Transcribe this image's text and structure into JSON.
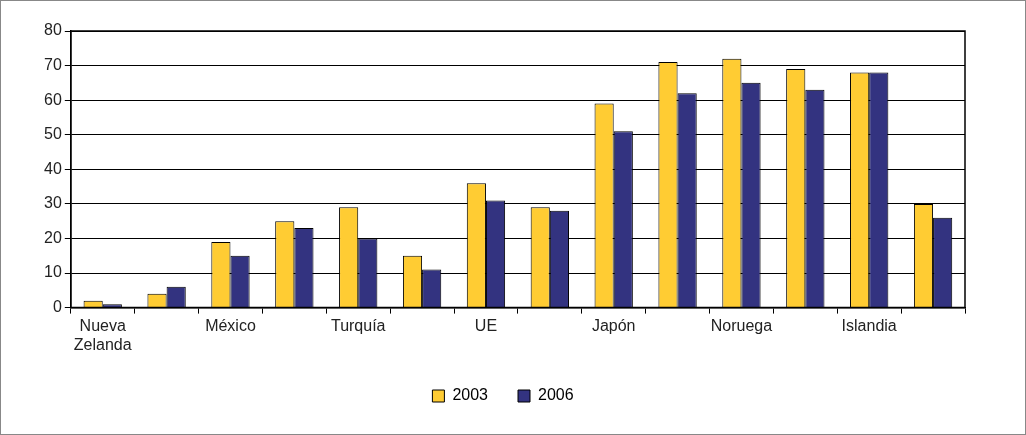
{
  "chart_data": {
    "type": "bar",
    "categories": [
      "Nueva Zelanda",
      null,
      "México",
      null,
      "Turquía",
      null,
      "UE",
      null,
      "Japón",
      null,
      "Noruega",
      null,
      "Islandia",
      null
    ],
    "series": [
      {
        "name": "2003",
        "color": "#ffcc33",
        "values": [
          2,
          4,
          19,
          25,
          29,
          15,
          36,
          29,
          59,
          71,
          72,
          69,
          68,
          30
        ]
      },
      {
        "name": "2006",
        "color": "#333380",
        "values": [
          1,
          6,
          15,
          23,
          20,
          11,
          31,
          28,
          51,
          62,
          65,
          63,
          68,
          26
        ]
      }
    ],
    "ylim": [
      0,
      80
    ],
    "yticks": [
      0,
      10,
      20,
      30,
      40,
      50,
      60,
      70,
      80
    ],
    "grid": "y",
    "legend": "bottom"
  }
}
